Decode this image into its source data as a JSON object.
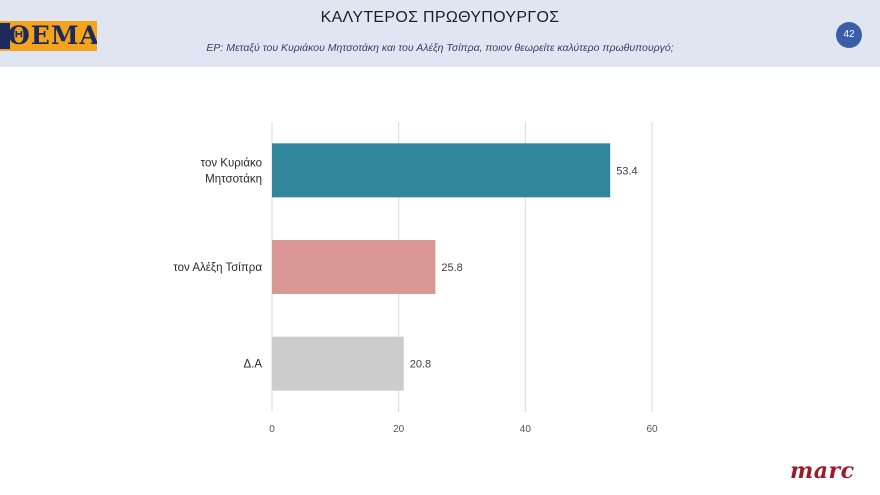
{
  "header": {
    "logo_text": "ΘΕΜΑ",
    "title": "ΚΑΛΥΤΕΡΟΣ ΠΡΩΘΥΠΟΥΡΓΟΣ",
    "subtitle": "ΕΡ: Μεταξύ του Κυριάκου Μητσοτάκη και του Αλέξη Τσίπρα, ποιον θεωρείτε καλύτερο πρωθυπουργό;",
    "page_number": "42"
  },
  "brand": "marc",
  "chart_data": {
    "type": "bar",
    "orientation": "horizontal",
    "categories": [
      [
        "τον Κυριάκο",
        "Μητσοτάκη"
      ],
      [
        "τον Αλέξη Τσίπρα"
      ],
      [
        "Δ.Α"
      ]
    ],
    "values": [
      53.4,
      25.8,
      20.8
    ],
    "value_labels": [
      "53.4",
      "25.8",
      "20.8"
    ],
    "colors": [
      "#31869b",
      "#da9694",
      "#cccccc"
    ],
    "xlim": [
      0,
      60
    ],
    "xticks": [
      0,
      20,
      40,
      60
    ],
    "grid": true
  }
}
